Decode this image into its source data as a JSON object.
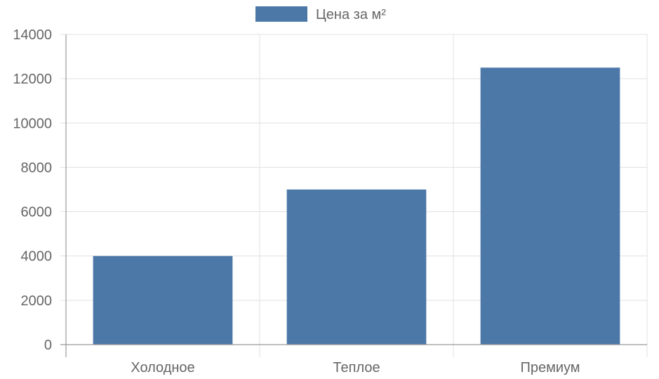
{
  "chart_data": {
    "type": "bar",
    "categories": [
      "Холодное",
      "Теплое",
      "Премиум"
    ],
    "series": [
      {
        "name": "Цена за м²",
        "values": [
          4000,
          7000,
          12500
        ],
        "color": "#4c78a8"
      }
    ],
    "ylim": [
      0,
      14000
    ],
    "yticks": [
      "0",
      "2000",
      "4000",
      "6000",
      "8000",
      "10000",
      "12000",
      "14000"
    ],
    "grid": true,
    "legend_position": "top-center",
    "colors": {
      "grid": "#e0e0e0",
      "axis": "#999999",
      "tick_text": "#666666"
    }
  }
}
